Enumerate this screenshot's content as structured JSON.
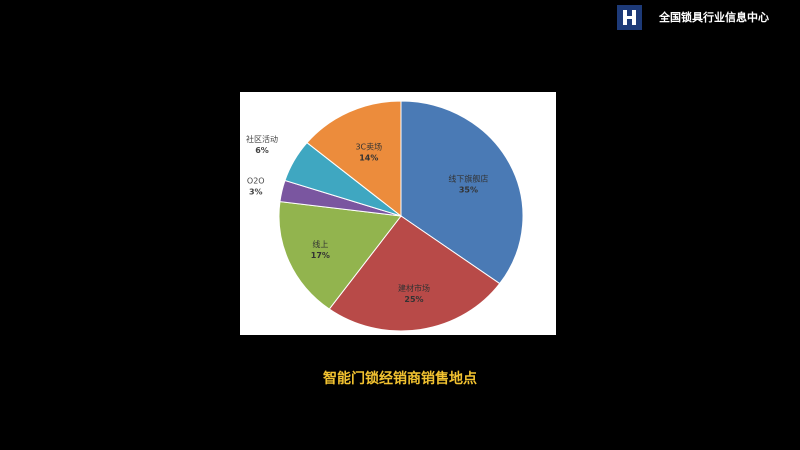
{
  "header": {
    "brand": "全国锁具行业信息中心",
    "logo_icon": "h-logo-icon"
  },
  "caption": "智能门锁经销商销售地点",
  "chart_data": {
    "type": "pie",
    "title": "",
    "start": "top",
    "direction": "clockwise",
    "slices": [
      {
        "label": "线下旗舰店",
        "value": 35,
        "pct": "35%",
        "color": "#4a7ab5"
      },
      {
        "label": "建材市场",
        "value": 25,
        "pct": "25%",
        "color": "#b84a48"
      },
      {
        "label": "线上",
        "value": 17,
        "pct": "17%",
        "color": "#92b44e"
      },
      {
        "label": "O2O",
        "value": 3,
        "pct": "3%",
        "color": "#7a56a0"
      },
      {
        "label": "社区活动",
        "value": 6,
        "pct": "6%",
        "color": "#3fa7c1"
      },
      {
        "label": "3C卖场",
        "value": 14,
        "pct": "14%",
        "color": "#ec8c3c"
      }
    ]
  }
}
